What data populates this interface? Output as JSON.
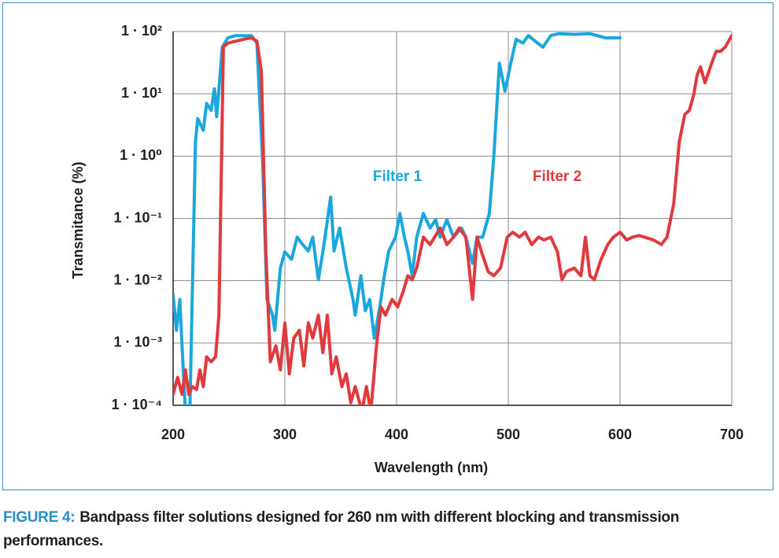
{
  "chart_data": {
    "type": "line",
    "xlabel": "Wavelength (nm)",
    "ylabel": "Transmitance (%)",
    "xlim": [
      200,
      700
    ],
    "xticks": [
      200,
      300,
      400,
      500,
      600,
      700
    ],
    "ylim": [
      0.0001,
      100
    ],
    "yscale": "log",
    "yticks": [
      {
        "value": 100,
        "label": "1 · 10²"
      },
      {
        "value": 10,
        "label": "1 · 10¹"
      },
      {
        "value": 1,
        "label": "1 · 10⁰"
      },
      {
        "value": 0.1,
        "label": "1 · 10⁻¹"
      },
      {
        "value": 0.01,
        "label": "1 · 10⁻²"
      },
      {
        "value": 0.001,
        "label": "1 · 10⁻³"
      },
      {
        "value": 0.0001,
        "label": "1 · 10⁻⁴"
      }
    ],
    "grid": true,
    "series": [
      {
        "name": "Filter 1",
        "color": "#1aa7dc",
        "x": [
          200,
          203,
          206,
          208,
          211,
          215,
          220,
          222,
          227,
          230,
          234,
          237,
          239,
          244,
          249,
          256,
          270,
          275,
          280,
          284,
          289,
          291,
          296,
          300,
          306,
          311,
          316,
          321,
          325,
          330,
          335,
          341,
          344,
          349,
          355,
          361,
          363,
          368,
          372,
          376,
          380,
          385,
          389,
          393,
          399,
          403,
          407,
          410,
          414,
          418,
          424,
          430,
          435,
          439,
          445,
          451,
          458,
          462,
          468,
          472,
          477,
          483,
          487,
          492,
          497,
          503,
          507,
          513,
          518,
          524,
          531,
          538,
          545,
          559,
          573,
          587,
          600
        ],
        "values": [
          0.006,
          0.0016,
          0.005,
          0.0009,
          8e-05,
          8e-05,
          1.7,
          4,
          2.6,
          7,
          5.4,
          12,
          4.3,
          56,
          79,
          86,
          86,
          65,
          0.96,
          0.005,
          0.0028,
          0.0016,
          0.016,
          0.029,
          0.022,
          0.05,
          0.038,
          0.03,
          0.05,
          0.0104,
          0.038,
          0.22,
          0.03,
          0.07,
          0.016,
          0.005,
          0.0028,
          0.012,
          0.0033,
          0.005,
          0.0012,
          0.0038,
          0.012,
          0.03,
          0.05,
          0.12,
          0.05,
          0.03,
          0.012,
          0.05,
          0.12,
          0.07,
          0.095,
          0.05,
          0.095,
          0.05,
          0.07,
          0.05,
          0.019,
          0.05,
          0.05,
          0.12,
          0.96,
          31,
          11,
          36,
          75,
          65,
          86,
          70,
          56,
          86,
          92,
          90,
          92,
          79,
          79
        ]
      },
      {
        "name": "Filter 2",
        "color": "#e0393e",
        "x": [
          200,
          204,
          208,
          211,
          214,
          217,
          221,
          224,
          227,
          230,
          234,
          238,
          241,
          245,
          249,
          256,
          263,
          270,
          275,
          279,
          283,
          287,
          292,
          296,
          300,
          304,
          308,
          313,
          317,
          321,
          325,
          330,
          334,
          338,
          342,
          346,
          351,
          355,
          359,
          363,
          369,
          373,
          377,
          382,
          386,
          390,
          396,
          401,
          406,
          410,
          414,
          418,
          424,
          430,
          434,
          439,
          445,
          451,
          456,
          462,
          468,
          472,
          476,
          482,
          487,
          493,
          499,
          504,
          510,
          515,
          521,
          527,
          532,
          538,
          544,
          548,
          552,
          559,
          565,
          569,
          573,
          577,
          583,
          589,
          594,
          600,
          606,
          611,
          617,
          622,
          630,
          637,
          642,
          648,
          653,
          658,
          662,
          666,
          669,
          672,
          676,
          682,
          686,
          690,
          694,
          700
        ],
        "values": [
          0.00015,
          0.00028,
          0.00015,
          0.00037,
          0.00015,
          0.0002,
          0.00018,
          0.00037,
          0.0002,
          0.0006,
          0.0005,
          0.0006,
          0.0028,
          56,
          65,
          70,
          75,
          79,
          70,
          23,
          0.029,
          0.0005,
          0.0009,
          0.00037,
          0.0021,
          0.00032,
          0.0012,
          0.0016,
          0.00043,
          0.0021,
          0.0012,
          0.0028,
          0.0007,
          0.0028,
          0.00032,
          0.0006,
          0.0002,
          0.00032,
          0.00011,
          0.0002,
          8e-05,
          0.0002,
          8e-05,
          0.0009,
          0.0038,
          0.0028,
          0.005,
          0.0038,
          0.0068,
          0.012,
          0.0104,
          0.016,
          0.05,
          0.038,
          0.05,
          0.07,
          0.038,
          0.05,
          0.07,
          0.05,
          0.005,
          0.05,
          0.029,
          0.014,
          0.012,
          0.016,
          0.05,
          0.06,
          0.05,
          0.06,
          0.038,
          0.05,
          0.045,
          0.05,
          0.029,
          0.0104,
          0.014,
          0.016,
          0.012,
          0.05,
          0.012,
          0.0104,
          0.022,
          0.038,
          0.05,
          0.06,
          0.045,
          0.05,
          0.053,
          0.05,
          0.045,
          0.038,
          0.05,
          0.17,
          1.7,
          4.7,
          5.4,
          9.8,
          20,
          27,
          15,
          31,
          48,
          48,
          56,
          86
        ]
      }
    ]
  },
  "caption": {
    "label": "FIGURE 4:",
    "text": "Bandpass filter solutions designed for 260 nm with different blocking and transmission performances."
  }
}
